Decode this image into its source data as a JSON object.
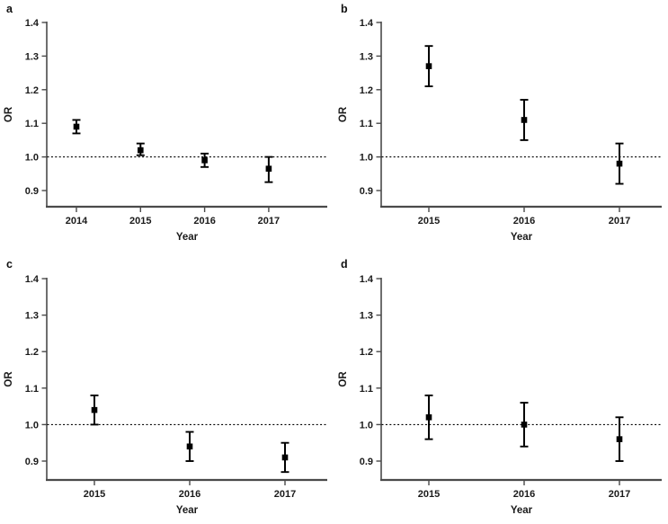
{
  "figure": {
    "background": "#ffffff",
    "axis_color": "#4a4a4a",
    "data_color": "#000000",
    "text_color": "#1a1a1a",
    "xlabel": "Year",
    "ylabel": "OR"
  },
  "chart_data": [
    {
      "type": "scatter",
      "panel": "a",
      "error_bars": true,
      "xlabel": "Year",
      "ylabel": "OR",
      "ylim": [
        0.85,
        1.4
      ],
      "yticks": [
        0.9,
        1.0,
        1.1,
        1.2,
        1.3,
        1.4
      ],
      "reference_line": 1.0,
      "grid": false,
      "categories": [
        "2014",
        "2015",
        "2016",
        "2017"
      ],
      "points": [
        {
          "year": "2014",
          "or": 1.09,
          "ci_low": 1.07,
          "ci_high": 1.11
        },
        {
          "year": "2015",
          "or": 1.02,
          "ci_low": 1.005,
          "ci_high": 1.04
        },
        {
          "year": "2016",
          "or": 0.99,
          "ci_low": 0.97,
          "ci_high": 1.01
        },
        {
          "year": "2017",
          "or": 0.965,
          "ci_low": 0.925,
          "ci_high": 1.0
        }
      ]
    },
    {
      "type": "scatter",
      "panel": "b",
      "error_bars": true,
      "xlabel": "Year",
      "ylabel": "OR",
      "ylim": [
        0.85,
        1.4
      ],
      "yticks": [
        0.9,
        1.0,
        1.1,
        1.2,
        1.3,
        1.4
      ],
      "reference_line": 1.0,
      "grid": false,
      "categories": [
        "2015",
        "2016",
        "2017"
      ],
      "points": [
        {
          "year": "2015",
          "or": 1.27,
          "ci_low": 1.21,
          "ci_high": 1.33
        },
        {
          "year": "2016",
          "or": 1.11,
          "ci_low": 1.05,
          "ci_high": 1.17
        },
        {
          "year": "2017",
          "or": 0.98,
          "ci_low": 0.92,
          "ci_high": 1.04
        }
      ]
    },
    {
      "type": "scatter",
      "panel": "c",
      "error_bars": true,
      "xlabel": "Year",
      "ylabel": "OR",
      "ylim": [
        0.85,
        1.4
      ],
      "yticks": [
        0.9,
        1.0,
        1.1,
        1.2,
        1.3,
        1.4
      ],
      "reference_line": 1.0,
      "grid": false,
      "categories": [
        "2015",
        "2016",
        "2017"
      ],
      "points": [
        {
          "year": "2015",
          "or": 1.04,
          "ci_low": 1.0,
          "ci_high": 1.08
        },
        {
          "year": "2016",
          "or": 0.94,
          "ci_low": 0.9,
          "ci_high": 0.98
        },
        {
          "year": "2017",
          "or": 0.91,
          "ci_low": 0.87,
          "ci_high": 0.95
        }
      ]
    },
    {
      "type": "scatter",
      "panel": "d",
      "error_bars": true,
      "xlabel": "Year",
      "ylabel": "OR",
      "ylim": [
        0.85,
        1.4
      ],
      "yticks": [
        0.9,
        1.0,
        1.1,
        1.2,
        1.3,
        1.4
      ],
      "reference_line": 1.0,
      "grid": false,
      "categories": [
        "2015",
        "2016",
        "2017"
      ],
      "points": [
        {
          "year": "2015",
          "or": 1.02,
          "ci_low": 0.96,
          "ci_high": 1.08
        },
        {
          "year": "2016",
          "or": 1.0,
          "ci_low": 0.94,
          "ci_high": 1.06
        },
        {
          "year": "2017",
          "or": 0.96,
          "ci_low": 0.9,
          "ci_high": 1.02
        }
      ]
    }
  ]
}
